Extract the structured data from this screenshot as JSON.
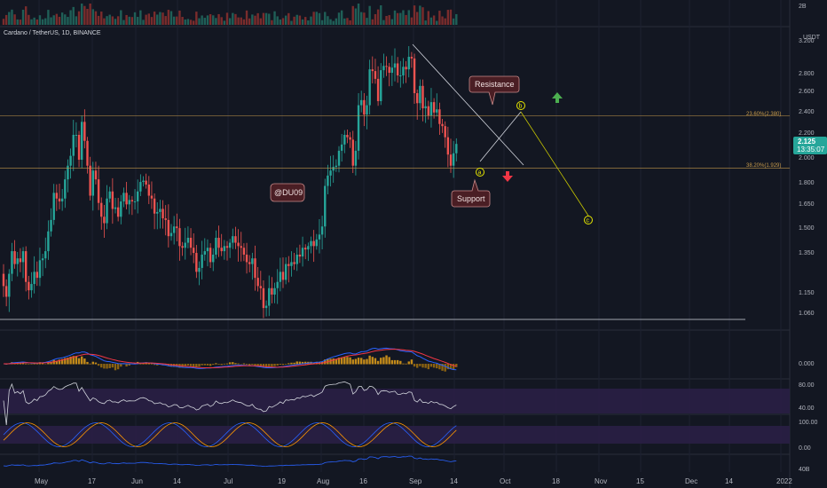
{
  "header": {
    "pair_title": "Cardano / TetherUS, 1D, BINANCE"
  },
  "price_axis": {
    "currency": "USDT",
    "ticks": [
      "3.200",
      "2.800",
      "2.600",
      "2.400",
      "2.200",
      "2.000",
      "1.800",
      "1.650",
      "1.500",
      "1.350",
      "1.150",
      "1.060"
    ],
    "current_price": "2.125",
    "countdown": "13:35:07",
    "current_price_color": "#26a69a"
  },
  "volume_axis": {
    "label": "2B"
  },
  "macd_axis": {
    "label": "0.000"
  },
  "rsi_axis": {
    "labels": [
      "80.00",
      "40.00"
    ]
  },
  "stoch_axis": {
    "labels": [
      "100.00",
      "0.00"
    ]
  },
  "adl_axis": {
    "label": "40B"
  },
  "time_axis": {
    "labels": [
      "May",
      "17",
      "Jun",
      "14",
      "Jul",
      "19",
      "Aug",
      "16",
      "Sep",
      "14",
      "Oct",
      "18",
      "Nov",
      "15",
      "Dec",
      "14",
      "2022"
    ]
  },
  "annotations": {
    "resistance_label": "Resistance",
    "support_label": "Support",
    "author_label": "@DU09",
    "fib_upper": "23.60%(2.380)",
    "fib_lower": "38.20%(1.929)",
    "wave_a": "a",
    "wave_b": "b",
    "wave_c": "c"
  },
  "colors": {
    "up": "#26a69a",
    "down": "#ef5350",
    "background": "#131722",
    "fib": "#c89b4b",
    "macd": "#2962ff",
    "signal": "#f23645",
    "rsi": "#d1d4dc",
    "wave": "#e6e600",
    "arrow_up": "#4caf50",
    "arrow_down": "#f23645"
  },
  "chart_data": {
    "type": "candlestick",
    "title": "Cardano / TetherUS, 1D, BINANCE",
    "y_unit": "USDT",
    "x_labels": [
      "May",
      "17",
      "Jun",
      "14",
      "Jul",
      "19",
      "Aug",
      "16",
      "Sep",
      "14",
      "Oct",
      "18",
      "Nov",
      "15",
      "Dec",
      "14",
      "2022"
    ],
    "ylim": [
      1.0,
      3.2
    ],
    "date_range": [
      "2021-04-24",
      "2021-09-22"
    ],
    "close_series": [
      1.19,
      1.14,
      1.25,
      1.37,
      1.3,
      1.33,
      1.31,
      1.37,
      1.21,
      1.17,
      1.2,
      1.26,
      1.23,
      1.32,
      1.33,
      1.37,
      1.49,
      1.56,
      1.74,
      1.7,
      1.68,
      1.7,
      1.84,
      1.95,
      2.03,
      2.2,
      2.2,
      2.0,
      2.32,
      2.15,
      1.95,
      1.72,
      1.91,
      1.84,
      1.67,
      1.58,
      1.54,
      1.7,
      1.75,
      1.63,
      1.64,
      1.58,
      1.68,
      1.74,
      1.66,
      1.69,
      1.68,
      1.68,
      1.75,
      1.82,
      1.83,
      1.8,
      1.72,
      1.7,
      1.6,
      1.61,
      1.63,
      1.57,
      1.56,
      1.46,
      1.48,
      1.52,
      1.51,
      1.4,
      1.39,
      1.42,
      1.45,
      1.39,
      1.36,
      1.26,
      1.28,
      1.35,
      1.37,
      1.39,
      1.31,
      1.35,
      1.45,
      1.39,
      1.37,
      1.4,
      1.39,
      1.42,
      1.46,
      1.42,
      1.4,
      1.39,
      1.35,
      1.31,
      1.3,
      1.33,
      1.23,
      1.19,
      1.18,
      1.09,
      1.1,
      1.18,
      1.15,
      1.18,
      1.21,
      1.26,
      1.22,
      1.3,
      1.29,
      1.31,
      1.3,
      1.35,
      1.34,
      1.39,
      1.38,
      1.4,
      1.43,
      1.4,
      1.44,
      1.47,
      1.52,
      1.79,
      1.87,
      1.91,
      1.94,
      1.95,
      2.07,
      2.12,
      2.2,
      2.18,
      2.16,
      1.95,
      2.07,
      2.48,
      2.53,
      2.39,
      2.48,
      2.87,
      2.85,
      2.76,
      2.52,
      2.86,
      2.91,
      2.9,
      2.83,
      2.89,
      2.94,
      2.8,
      2.8,
      2.9,
      2.87,
      3.02,
      3.0,
      2.6,
      2.5,
      2.68,
      2.45,
      2.47,
      2.38,
      2.51,
      2.41,
      2.44,
      2.3,
      2.28,
      2.18,
      2.04,
      1.95,
      2.05,
      2.125
    ],
    "fib_levels": [
      {
        "label": "23.60%(2.380)",
        "value": 2.38
      },
      {
        "label": "38.20%(1.929)",
        "value": 1.929
      }
    ],
    "support_line": 1.03,
    "current_price": 2.125
  }
}
